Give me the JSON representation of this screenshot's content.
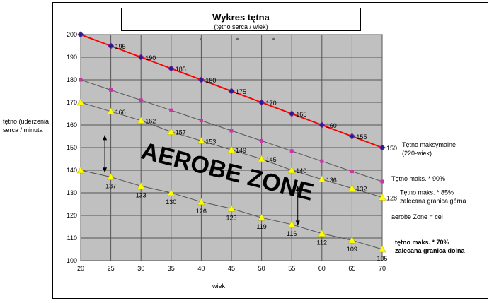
{
  "chart_data": {
    "type": "line",
    "title": "Wykres tętna",
    "subtitle": "(tętno serca / wiek)",
    "xlabel": "wiek",
    "ylabel": "tętno (uderzenia serca / minuta",
    "x": [
      20,
      25,
      30,
      35,
      40,
      45,
      50,
      55,
      60,
      65,
      70
    ],
    "xlim": [
      20,
      70
    ],
    "ylim": [
      100,
      200
    ],
    "xticks": [
      20,
      25,
      30,
      35,
      40,
      45,
      50,
      55,
      60,
      65,
      70
    ],
    "yticks": [
      100,
      110,
      120,
      130,
      140,
      150,
      160,
      170,
      180,
      190,
      200
    ],
    "grid": true,
    "series": [
      {
        "name": "Tętno maksymalne (220-wiek)",
        "label_lines": [
          "Tętno maksymalne",
          "(220-wiek)"
        ],
        "values": [
          200,
          195,
          190,
          185,
          180,
          175,
          170,
          165,
          160,
          155,
          150
        ],
        "point_labels": [
          "",
          "195",
          "190",
          "185",
          "180",
          "175",
          "170",
          "165",
          "160",
          "155",
          "150"
        ],
        "line_color": "#ff0000",
        "marker_color": "#1f1f8f",
        "marker": "diamond"
      },
      {
        "name": "Tętno maks. * 90%",
        "label_lines": [
          "Tętno maks. * 90%"
        ],
        "values": [
          180,
          175.5,
          171,
          166.5,
          162,
          157.5,
          153,
          148.5,
          144,
          139.5,
          135
        ],
        "point_labels": [],
        "line_color": "#555555",
        "marker_color": "#cc33aa",
        "marker": "square"
      },
      {
        "name": "Tętno maks. * 85% zalecana granica górna",
        "label_lines": [
          "Tętno maks. * 85%",
          "zalecana granica górna"
        ],
        "values": [
          170,
          166,
          162,
          157,
          153,
          149,
          145,
          140,
          136,
          132,
          128
        ],
        "point_labels": [
          "",
          "166",
          "162",
          "157",
          "153",
          "149",
          "145",
          "140",
          "136",
          "132",
          "128"
        ],
        "line_color": "#555555",
        "marker_color": "#ffff00",
        "marker": "triangle"
      },
      {
        "name": "tętno maks. * 70% zalecana granica dolna",
        "label_lines": [
          "tętno maks. * 70%",
          "zalecana granica dolna"
        ],
        "bold": true,
        "values": [
          140,
          137,
          133,
          130,
          126,
          123,
          119,
          116,
          112,
          109,
          105
        ],
        "point_labels": [
          "",
          "137",
          "133",
          "130",
          "126",
          "123",
          "119",
          "116",
          "112",
          "109",
          "105"
        ],
        "line_color": "#555555",
        "marker_color": "#ffff00",
        "marker": "triangle"
      }
    ],
    "annotations": {
      "zone_text": "AEROBE ZONE",
      "zone_note": "aerobe Zone = cel"
    },
    "colors": {
      "plot_background": "#c0c0c0",
      "grid": "#555555"
    }
  }
}
